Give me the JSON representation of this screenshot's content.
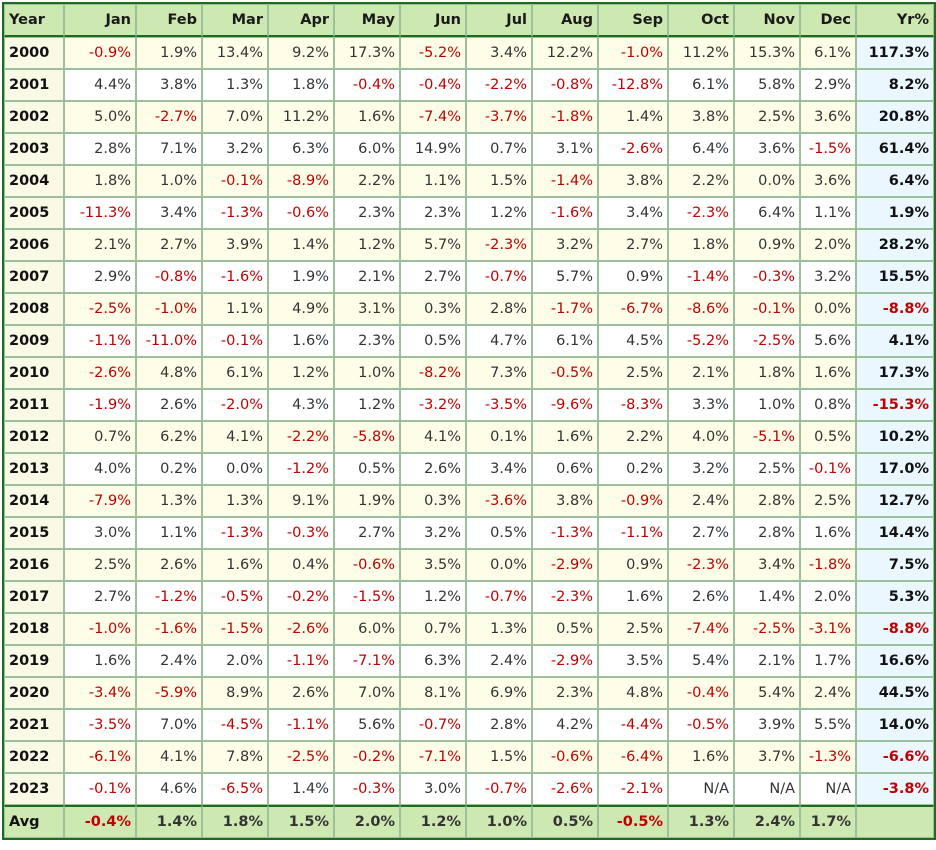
{
  "headers": [
    "Year",
    "Jan",
    "Feb",
    "Mar",
    "Apr",
    "May",
    "Jun",
    "Jul",
    "Aug",
    "Sep",
    "Oct",
    "Nov",
    "Dec",
    "Yr%"
  ],
  "rows": [
    {
      "year": "2000",
      "months": [
        "-0.9%",
        "1.9%",
        "13.4%",
        "9.2%",
        "17.3%",
        "-5.2%",
        "3.4%",
        "12.2%",
        "-1.0%",
        "11.2%",
        "15.3%",
        "6.1%"
      ],
      "yr": "117.3%"
    },
    {
      "year": "2001",
      "months": [
        "4.4%",
        "3.8%",
        "1.3%",
        "1.8%",
        "-0.4%",
        "-0.4%",
        "-2.2%",
        "-0.8%",
        "-12.8%",
        "6.1%",
        "5.8%",
        "2.9%"
      ],
      "yr": "8.2%"
    },
    {
      "year": "2002",
      "months": [
        "5.0%",
        "-2.7%",
        "7.0%",
        "11.2%",
        "1.6%",
        "-7.4%",
        "-3.7%",
        "-1.8%",
        "1.4%",
        "3.8%",
        "2.5%",
        "3.6%"
      ],
      "yr": "20.8%"
    },
    {
      "year": "2003",
      "months": [
        "2.8%",
        "7.1%",
        "3.2%",
        "6.3%",
        "6.0%",
        "14.9%",
        "0.7%",
        "3.1%",
        "-2.6%",
        "6.4%",
        "3.6%",
        "-1.5%"
      ],
      "yr": "61.4%"
    },
    {
      "year": "2004",
      "months": [
        "1.8%",
        "1.0%",
        "-0.1%",
        "-8.9%",
        "2.2%",
        "1.1%",
        "1.5%",
        "-1.4%",
        "3.8%",
        "2.2%",
        "0.0%",
        "3.6%"
      ],
      "yr": "6.4%"
    },
    {
      "year": "2005",
      "months": [
        "-11.3%",
        "3.4%",
        "-1.3%",
        "-0.6%",
        "2.3%",
        "2.3%",
        "1.2%",
        "-1.6%",
        "3.4%",
        "-2.3%",
        "6.4%",
        "1.1%"
      ],
      "yr": "1.9%"
    },
    {
      "year": "2006",
      "months": [
        "2.1%",
        "2.7%",
        "3.9%",
        "1.4%",
        "1.2%",
        "5.7%",
        "-2.3%",
        "3.2%",
        "2.7%",
        "1.8%",
        "0.9%",
        "2.0%"
      ],
      "yr": "28.2%"
    },
    {
      "year": "2007",
      "months": [
        "2.9%",
        "-0.8%",
        "-1.6%",
        "1.9%",
        "2.1%",
        "2.7%",
        "-0.7%",
        "5.7%",
        "0.9%",
        "-1.4%",
        "-0.3%",
        "3.2%"
      ],
      "yr": "15.5%"
    },
    {
      "year": "2008",
      "months": [
        "-2.5%",
        "-1.0%",
        "1.1%",
        "4.9%",
        "3.1%",
        "0.3%",
        "2.8%",
        "-1.7%",
        "-6.7%",
        "-8.6%",
        "-0.1%",
        "0.0%"
      ],
      "yr": "-8.8%"
    },
    {
      "year": "2009",
      "months": [
        "-1.1%",
        "-11.0%",
        "-0.1%",
        "1.6%",
        "2.3%",
        "0.5%",
        "4.7%",
        "6.1%",
        "4.5%",
        "-5.2%",
        "-2.5%",
        "5.6%"
      ],
      "yr": "4.1%"
    },
    {
      "year": "2010",
      "months": [
        "-2.6%",
        "4.8%",
        "6.1%",
        "1.2%",
        "1.0%",
        "-8.2%",
        "7.3%",
        "-0.5%",
        "2.5%",
        "2.1%",
        "1.8%",
        "1.6%"
      ],
      "yr": "17.3%"
    },
    {
      "year": "2011",
      "months": [
        "-1.9%",
        "2.6%",
        "-2.0%",
        "4.3%",
        "1.2%",
        "-3.2%",
        "-3.5%",
        "-9.6%",
        "-8.3%",
        "3.3%",
        "1.0%",
        "0.8%"
      ],
      "yr": "-15.3%"
    },
    {
      "year": "2012",
      "months": [
        "0.7%",
        "6.2%",
        "4.1%",
        "-2.2%",
        "-5.8%",
        "4.1%",
        "0.1%",
        "1.6%",
        "2.2%",
        "4.0%",
        "-5.1%",
        "0.5%"
      ],
      "yr": "10.2%"
    },
    {
      "year": "2013",
      "months": [
        "4.0%",
        "0.2%",
        "0.0%",
        "-1.2%",
        "0.5%",
        "2.6%",
        "3.4%",
        "0.6%",
        "0.2%",
        "3.2%",
        "2.5%",
        "-0.1%"
      ],
      "yr": "17.0%"
    },
    {
      "year": "2014",
      "months": [
        "-7.9%",
        "1.3%",
        "1.3%",
        "9.1%",
        "1.9%",
        "0.3%",
        "-3.6%",
        "3.8%",
        "-0.9%",
        "2.4%",
        "2.8%",
        "2.5%"
      ],
      "yr": "12.7%"
    },
    {
      "year": "2015",
      "months": [
        "3.0%",
        "1.1%",
        "-1.3%",
        "-0.3%",
        "2.7%",
        "3.2%",
        "0.5%",
        "-1.3%",
        "-1.1%",
        "2.7%",
        "2.8%",
        "1.6%"
      ],
      "yr": "14.4%"
    },
    {
      "year": "2016",
      "months": [
        "2.5%",
        "2.6%",
        "1.6%",
        "0.4%",
        "-0.6%",
        "3.5%",
        "0.0%",
        "-2.9%",
        "0.9%",
        "-2.3%",
        "3.4%",
        "-1.8%"
      ],
      "yr": "7.5%"
    },
    {
      "year": "2017",
      "months": [
        "2.7%",
        "-1.2%",
        "-0.5%",
        "-0.2%",
        "-1.5%",
        "1.2%",
        "-0.7%",
        "-2.3%",
        "1.6%",
        "2.6%",
        "1.4%",
        "2.0%"
      ],
      "yr": "5.3%"
    },
    {
      "year": "2018",
      "months": [
        "-1.0%",
        "-1.6%",
        "-1.5%",
        "-2.6%",
        "6.0%",
        "0.7%",
        "1.3%",
        "0.5%",
        "2.5%",
        "-7.4%",
        "-2.5%",
        "-3.1%"
      ],
      "yr": "-8.8%"
    },
    {
      "year": "2019",
      "months": [
        "1.6%",
        "2.4%",
        "2.0%",
        "-1.1%",
        "-7.1%",
        "6.3%",
        "2.4%",
        "-2.9%",
        "3.5%",
        "5.4%",
        "2.1%",
        "1.7%"
      ],
      "yr": "16.6%"
    },
    {
      "year": "2020",
      "months": [
        "-3.4%",
        "-5.9%",
        "8.9%",
        "2.6%",
        "7.0%",
        "8.1%",
        "6.9%",
        "2.3%",
        "4.8%",
        "-0.4%",
        "5.4%",
        "2.4%"
      ],
      "yr": "44.5%"
    },
    {
      "year": "2021",
      "months": [
        "-3.5%",
        "7.0%",
        "-4.5%",
        "-1.1%",
        "5.6%",
        "-0.7%",
        "2.8%",
        "4.2%",
        "-4.4%",
        "-0.5%",
        "3.9%",
        "5.5%"
      ],
      "yr": "14.0%"
    },
    {
      "year": "2022",
      "months": [
        "-6.1%",
        "4.1%",
        "7.8%",
        "-2.5%",
        "-0.2%",
        "-7.1%",
        "1.5%",
        "-0.6%",
        "-6.4%",
        "1.6%",
        "3.7%",
        "-1.3%"
      ],
      "yr": "-6.6%"
    },
    {
      "year": "2023",
      "months": [
        "-0.1%",
        "4.6%",
        "-6.5%",
        "1.4%",
        "-0.3%",
        "3.0%",
        "-0.7%",
        "-2.6%",
        "-2.1%",
        "N/A",
        "N/A",
        "N/A"
      ],
      "yr": "-3.8%"
    }
  ],
  "avg": {
    "label": "Avg",
    "months": [
      "-0.4%",
      "1.4%",
      "1.8%",
      "1.5%",
      "2.0%",
      "1.2%",
      "1.0%",
      "0.5%",
      "-0.5%",
      "1.3%",
      "2.4%",
      "1.7%"
    ],
    "yr": ""
  },
  "colors": {
    "negative": "#c00000",
    "header_bg": "#cde8b0",
    "border": "#1e6a1e",
    "yr_bg": "#eaf7ff"
  }
}
